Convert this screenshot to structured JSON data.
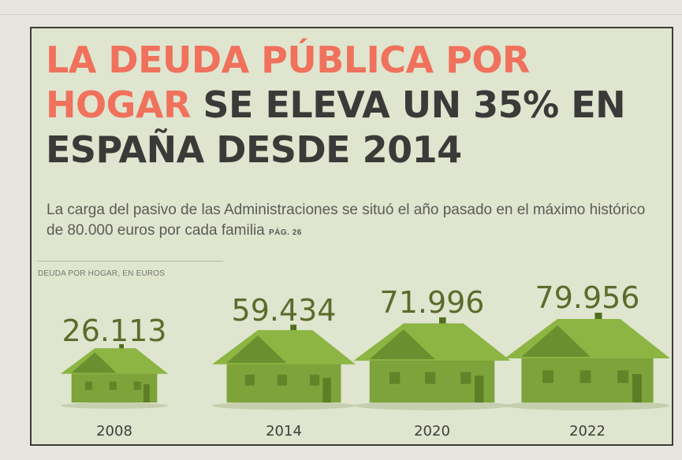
{
  "headline": {
    "part_red": "LA DEUDA PÚBLICA POR HOGAR",
    "part_dark": "SE ELEVA UN 35% EN ESPAÑA DESDE 2014"
  },
  "subtitle": {
    "text": "La carga del pasivo de las Administraciones se situó el año pasado en el máximo histórico de 80.000 euros por cada familia",
    "page_ref": "PÁG. 26"
  },
  "chart_data": {
    "type": "bar",
    "marker": "house-icon",
    "ylabel": "DEUDA POR HOGAR, EN EUROS",
    "categories": [
      "2008",
      "2014",
      "2020",
      "2022"
    ],
    "values": [
      26113,
      59434,
      71996,
      79956
    ],
    "value_labels": [
      "26.113",
      "59.434",
      "71.996",
      "79.956"
    ],
    "colors": {
      "house": "#7ea33a",
      "house_dark": "#4f6f1e",
      "roof": "#8cb543",
      "label": "#5d6b2b"
    }
  }
}
